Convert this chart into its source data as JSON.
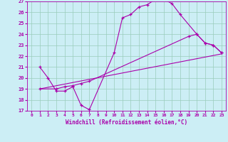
{
  "xlabel": "Windchill (Refroidissement éolien,°C)",
  "xlim": [
    -0.5,
    23.5
  ],
  "ylim": [
    17,
    27
  ],
  "xticks": [
    0,
    1,
    2,
    3,
    4,
    5,
    6,
    7,
    8,
    9,
    10,
    11,
    12,
    13,
    14,
    15,
    16,
    17,
    18,
    19,
    20,
    21,
    22,
    23
  ],
  "yticks": [
    17,
    18,
    19,
    20,
    21,
    22,
    23,
    24,
    25,
    26,
    27
  ],
  "bg_color": "#cceef5",
  "line_color": "#aa00aa",
  "grid_color": "#99ccbb",
  "curves": [
    {
      "x": [
        1,
        2,
        3,
        4,
        5,
        6,
        7,
        10,
        11,
        12,
        13,
        14,
        15,
        16,
        17,
        18,
        20,
        21,
        22,
        23
      ],
      "y": [
        21,
        20,
        18.8,
        18.8,
        19.2,
        17.5,
        17.1,
        22.3,
        25.5,
        25.8,
        26.5,
        26.7,
        27.2,
        27.2,
        26.8,
        25.8,
        24.0,
        23.2,
        23.0,
        22.3
      ],
      "marker": true
    },
    {
      "x": [
        1,
        23
      ],
      "y": [
        19.0,
        22.2
      ],
      "marker": false
    },
    {
      "x": [
        1,
        3,
        4,
        5,
        6,
        7,
        19,
        20,
        21,
        22,
        23
      ],
      "y": [
        19.0,
        19.0,
        19.2,
        19.3,
        19.5,
        19.7,
        23.8,
        24.0,
        23.2,
        23.0,
        22.3
      ],
      "marker": true
    }
  ]
}
